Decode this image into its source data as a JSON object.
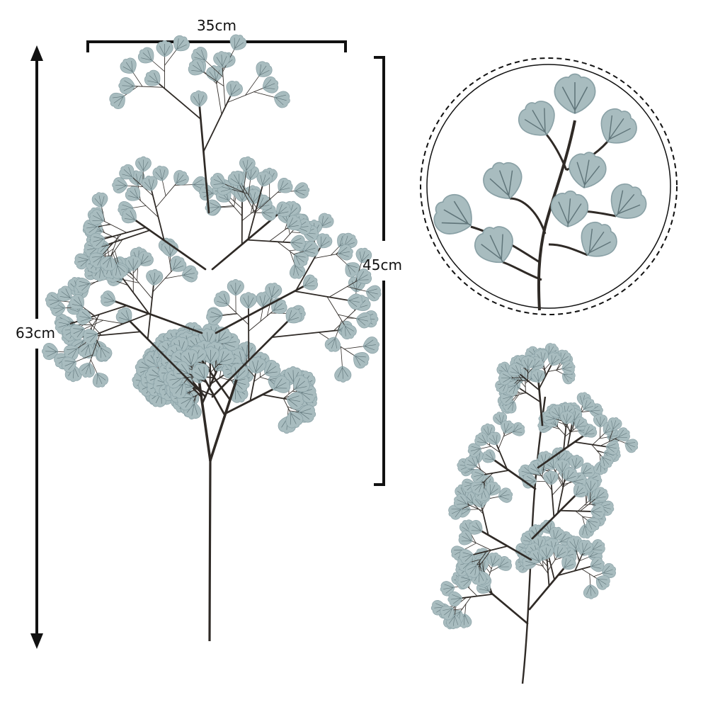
{
  "dimensions": {
    "width_label": "35cm",
    "total_height_label": "63cm",
    "foliage_height_label": "45cm"
  },
  "colors": {
    "leaf_fill": "#a8bcbf",
    "leaf_shade": "#8aa1a6",
    "leaf_vein": "#5f7479",
    "stem": "#2f2a26",
    "ink": "#111111",
    "background": "#ffffff"
  }
}
